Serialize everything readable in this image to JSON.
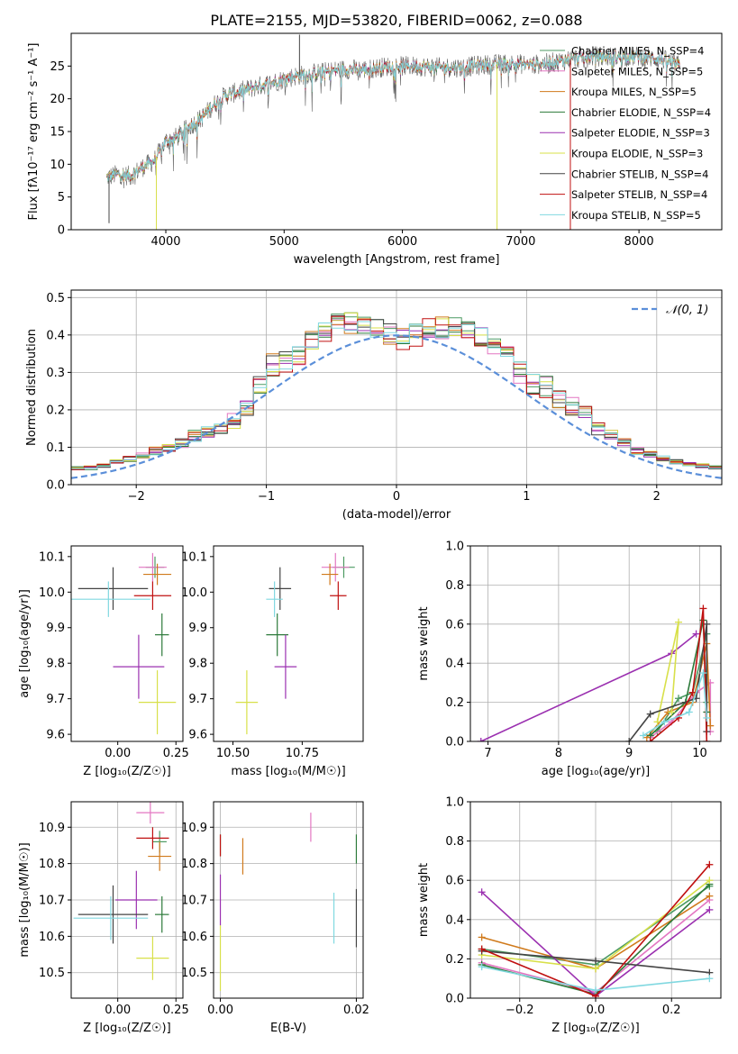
{
  "figure": {
    "title": "PLATE=2155, MJD=53820, FIBERID=0062, z=0.088"
  },
  "model_labels": [
    "Chabrier MILES, N_SSP=4",
    "Salpeter MILES, N_SSP=5",
    "Kroupa MILES, N_SSP=5",
    "Chabrier ELODIE, N_SSP=4",
    "Salpeter ELODIE, N_SSP=3",
    "Kroupa ELODIE, N_SSP=3",
    "Chabrier STELIB, N_SSP=4",
    "Salpeter STELIB, N_SSP=4",
    "Kroupa STELIB, N_SSP=5"
  ],
  "model_colors": [
    "#4c9a62",
    "#e377c2",
    "#d07a1c",
    "#2c7a3a",
    "#9b30b0",
    "#d8e04a",
    "#444444",
    "#c01010",
    "#80d8e0"
  ],
  "chart_data": [
    {
      "id": "spectrum",
      "type": "line",
      "xlabel": "wavelength [Angstrom, rest frame]",
      "ylabel": "Flux [fλ10⁻¹⁷ erg cm⁻² s⁻¹ A⁻¹]",
      "xlim": [
        3200,
        8700
      ],
      "ylim": [
        0,
        30
      ],
      "xticks": [
        4000,
        5000,
        6000,
        7000,
        8000
      ],
      "yticks": [
        0,
        5,
        10,
        15,
        20,
        25
      ],
      "legend_position": "upper-right",
      "grid": false,
      "continuum": {
        "x": [
          3500,
          3600,
          3700,
          3800,
          3900,
          4000,
          4100,
          4200,
          4300,
          4400,
          4500,
          4700,
          4900,
          5100,
          5300,
          5500,
          5700,
          5900,
          6100,
          6300,
          6500,
          6700,
          6900,
          7100,
          7300,
          7400,
          7600,
          7800,
          8000,
          8200,
          8350
        ],
        "y": [
          8,
          8.5,
          8.2,
          9.5,
          10.5,
          13.5,
          14.2,
          15.8,
          17,
          19,
          20.5,
          21.5,
          22.5,
          23.5,
          24,
          24.5,
          24.5,
          25,
          25,
          24.8,
          24.8,
          25.2,
          25.4,
          25.2,
          25.6,
          26,
          26.5,
          26.4,
          26.5,
          26,
          25
        ]
      },
      "spikes": [
        {
          "x": 3520,
          "y": 1
        },
        {
          "x": 3920,
          "y": 0
        },
        {
          "x": 5130,
          "y": 29.8
        },
        {
          "x": 6800,
          "y": 0
        },
        {
          "x": 7420,
          "y": 0
        }
      ]
    },
    {
      "id": "residual-histogram",
      "type": "histogram",
      "xlabel": "(data-model)/error",
      "ylabel": "Normed distribution",
      "xlim": [
        -2.5,
        2.5
      ],
      "ylim": [
        0,
        0.52
      ],
      "xticks": [
        -2,
        -1,
        0,
        1,
        2
      ],
      "yticks": [
        0,
        0.1,
        0.2,
        0.3,
        0.4,
        0.5
      ],
      "grid": true,
      "reference_curve": {
        "label": "𝒩(0, 1)",
        "mean": 0,
        "sigma": 1,
        "style": "dashed",
        "color": "#5b8fd9"
      },
      "bin_width": 0.1,
      "envelope": [
        0.02,
        0.025,
        0.03,
        0.035,
        0.04,
        0.045,
        0.045,
        0.05,
        0.06,
        0.07,
        0.08,
        0.09,
        0.1,
        0.11,
        0.13,
        0.14,
        0.15,
        0.17,
        0.2,
        0.27,
        0.32,
        0.33,
        0.35,
        0.38,
        0.41,
        0.43,
        0.43,
        0.43,
        0.42,
        0.4,
        0.39,
        0.4,
        0.42,
        0.42,
        0.42,
        0.41,
        0.4,
        0.36,
        0.34,
        0.3,
        0.27,
        0.26,
        0.23,
        0.21,
        0.19,
        0.15,
        0.13,
        0.11,
        0.09,
        0.08,
        0.07,
        0.06,
        0.055,
        0.05,
        0.045,
        0.04,
        0.035,
        0.03,
        0.025,
        0.02
      ]
    },
    {
      "id": "age-vs-z",
      "type": "scatter",
      "xlabel": "Z [log₁₀(Z/Z☉)]",
      "ylabel": "age  [log₁₀(age/yr)]",
      "xlim": [
        -0.2,
        0.28
      ],
      "ylim": [
        9.58,
        10.13
      ],
      "xticks": [
        0,
        0.25
      ],
      "yticks": [
        9.6,
        9.7,
        9.8,
        9.9,
        10.0,
        10.1
      ],
      "points": [
        {
          "x": 0.16,
          "y": 10.07,
          "ex": 0.04,
          "ey": 0.03
        },
        {
          "x": 0.15,
          "y": 10.07,
          "ex": 0.06,
          "ey": 0.04
        },
        {
          "x": 0.17,
          "y": 10.05,
          "ex": 0.06,
          "ey": 0.03
        },
        {
          "x": 0.19,
          "y": 9.88,
          "ex": 0.03,
          "ey": 0.06
        },
        {
          "x": 0.09,
          "y": 9.79,
          "ex": 0.11,
          "ey": 0.09
        },
        {
          "x": 0.17,
          "y": 9.69,
          "ex": 0.08,
          "ey": 0.09
        },
        {
          "x": -0.02,
          "y": 10.01,
          "ex": 0.15,
          "ey": 0.06
        },
        {
          "x": 0.15,
          "y": 9.99,
          "ex": 0.08,
          "ey": 0.04
        },
        {
          "x": -0.04,
          "y": 9.98,
          "ex": 0.18,
          "ey": 0.05
        }
      ]
    },
    {
      "id": "age-vs-mass",
      "type": "scatter",
      "xlabel": "mass [log₁₀(M/M☉)]",
      "ylabel": "",
      "xlim": [
        10.43,
        10.97
      ],
      "ylim": [
        9.58,
        10.13
      ],
      "xticks": [
        10.5,
        10.75
      ],
      "yticks": [
        9.6,
        9.7,
        9.8,
        9.9,
        10.0,
        10.1
      ],
      "points": [
        {
          "x": 10.9,
          "y": 10.07,
          "ex": 0.04,
          "ey": 0.03
        },
        {
          "x": 10.87,
          "y": 10.07,
          "ex": 0.05,
          "ey": 0.04
        },
        {
          "x": 10.85,
          "y": 10.05,
          "ex": 0.03,
          "ey": 0.03
        },
        {
          "x": 10.66,
          "y": 9.88,
          "ex": 0.04,
          "ey": 0.06
        },
        {
          "x": 10.69,
          "y": 9.79,
          "ex": 0.04,
          "ey": 0.09
        },
        {
          "x": 10.55,
          "y": 9.69,
          "ex": 0.04,
          "ey": 0.09
        },
        {
          "x": 10.67,
          "y": 10.01,
          "ex": 0.04,
          "ey": 0.06
        },
        {
          "x": 10.88,
          "y": 9.99,
          "ex": 0.03,
          "ey": 0.04
        },
        {
          "x": 10.65,
          "y": 9.98,
          "ex": 0.03,
          "ey": 0.05
        }
      ]
    },
    {
      "id": "mass-weight-vs-age",
      "type": "line",
      "xlabel": "age  [log₁₀(age/yr)]",
      "ylabel": "mass weight",
      "xlim": [
        6.75,
        10.3
      ],
      "ylim": [
        0,
        1
      ],
      "xticks": [
        7,
        8,
        9,
        10
      ],
      "yticks": [
        0,
        0.2,
        0.4,
        0.6,
        0.8,
        1.0
      ],
      "grid": true,
      "series": [
        {
          "points": [
            [
              9.4,
              0.05
            ],
            [
              9.7,
              0.22
            ],
            [
              9.9,
              0.25
            ],
            [
              10.1,
              0.55
            ],
            [
              10.1,
              0.2
            ]
          ]
        },
        {
          "points": [
            [
              9.3,
              0.02
            ],
            [
              9.6,
              0.1
            ],
            [
              9.95,
              0.25
            ],
            [
              10.15,
              0.3
            ],
            [
              10.15,
              0.05
            ]
          ]
        },
        {
          "points": [
            [
              9.25,
              0.02
            ],
            [
              9.55,
              0.15
            ],
            [
              9.9,
              0.2
            ],
            [
              10.1,
              0.5
            ],
            [
              10.15,
              0.08
            ]
          ]
        },
        {
          "points": [
            [
              9.3,
              0.03
            ],
            [
              9.8,
              0.2
            ],
            [
              10.05,
              0.62
            ],
            [
              10.1,
              0.15
            ]
          ]
        },
        {
          "points": [
            [
              6.9,
              0.0
            ],
            [
              9.6,
              0.45
            ],
            [
              9.95,
              0.55
            ]
          ]
        },
        {
          "points": [
            [
              9.4,
              0.1
            ],
            [
              9.7,
              0.61
            ],
            [
              9.6,
              0.15
            ]
          ]
        },
        {
          "points": [
            [
              9.0,
              0.0
            ],
            [
              9.3,
              0.14
            ],
            [
              9.95,
              0.22
            ],
            [
              10.1,
              0.6
            ],
            [
              10.1,
              0.05
            ]
          ]
        },
        {
          "points": [
            [
              9.3,
              0.0
            ],
            [
              9.7,
              0.12
            ],
            [
              9.9,
              0.25
            ],
            [
              10.05,
              0.68
            ],
            [
              10.1,
              0.0
            ]
          ]
        },
        {
          "points": [
            [
              9.2,
              0.03
            ],
            [
              9.5,
              0.1
            ],
            [
              9.85,
              0.15
            ],
            [
              10.05,
              0.35
            ],
            [
              10.1,
              0.12
            ]
          ]
        }
      ]
    },
    {
      "id": "mass-vs-z",
      "type": "scatter",
      "xlabel": "Z [log₁₀(Z/Z☉)]",
      "ylabel": "mass [log₁₀(M/M☉)]",
      "xlim": [
        -0.2,
        0.28
      ],
      "ylim": [
        10.43,
        10.97
      ],
      "xticks": [
        0,
        0.25
      ],
      "yticks": [
        10.5,
        10.6,
        10.7,
        10.8,
        10.9
      ],
      "grid": true,
      "points": [
        {
          "x": 0.18,
          "y": 10.86,
          "ex": 0.03,
          "ey": 0.03
        },
        {
          "x": 0.14,
          "y": 10.94,
          "ex": 0.06,
          "ey": 0.03
        },
        {
          "x": 0.18,
          "y": 10.82,
          "ex": 0.05,
          "ey": 0.04
        },
        {
          "x": 0.19,
          "y": 10.66,
          "ex": 0.03,
          "ey": 0.05
        },
        {
          "x": 0.08,
          "y": 10.7,
          "ex": 0.09,
          "ey": 0.08
        },
        {
          "x": 0.15,
          "y": 10.54,
          "ex": 0.07,
          "ey": 0.06
        },
        {
          "x": -0.02,
          "y": 10.66,
          "ex": 0.15,
          "ey": 0.08
        },
        {
          "x": 0.15,
          "y": 10.87,
          "ex": 0.07,
          "ey": 0.03
        },
        {
          "x": -0.03,
          "y": 10.65,
          "ex": 0.16,
          "ey": 0.06
        }
      ]
    },
    {
      "id": "mass-vs-ebv",
      "type": "scatter",
      "xlabel": "E(B-V)",
      "ylabel": "",
      "xlim": [
        -0.001,
        0.021
      ],
      "ylim": [
        10.43,
        10.97
      ],
      "xticks": [
        0,
        0.02
      ],
      "yticks": [
        10.5,
        10.6,
        10.7,
        10.8,
        10.9
      ],
      "grid": true,
      "points": [
        {
          "x": 0.0,
          "y": 10.85,
          "ex": 0,
          "ey": 0.03
        },
        {
          "x": 0.0133,
          "y": 10.9,
          "ex": 0,
          "ey": 0.04
        },
        {
          "x": 0.0033,
          "y": 10.82,
          "ex": 0,
          "ey": 0.05
        },
        {
          "x": 0.02,
          "y": 10.84,
          "ex": 0,
          "ey": 0.04
        },
        {
          "x": 0.0,
          "y": 10.7,
          "ex": 0,
          "ey": 0.07
        },
        {
          "x": 0.0,
          "y": 10.54,
          "ex": 0,
          "ey": 0.09
        },
        {
          "x": 0.02,
          "y": 10.65,
          "ex": 0,
          "ey": 0.08
        },
        {
          "x": 0.0,
          "y": 10.85,
          "ex": 0,
          "ey": 0.03
        },
        {
          "x": 0.0167,
          "y": 10.65,
          "ex": 0,
          "ey": 0.07
        }
      ]
    },
    {
      "id": "mass-weight-vs-z",
      "type": "line",
      "xlabel": "Z [log₁₀(Z/Z☉)]",
      "ylabel": "mass weight",
      "xlim": [
        -0.33,
        0.33
      ],
      "ylim": [
        0,
        1
      ],
      "xticks": [
        -0.2,
        0,
        0.2
      ],
      "yticks": [
        0,
        0.2,
        0.4,
        0.6,
        0.8,
        1.0
      ],
      "grid": true,
      "series": [
        {
          "points": [
            [
              -0.3,
              0.25
            ],
            [
              0,
              0.17
            ],
            [
              0.3,
              0.57
            ]
          ]
        },
        {
          "points": [
            [
              -0.3,
              0.18
            ],
            [
              0,
              0.03
            ],
            [
              0.3,
              0.5
            ]
          ]
        },
        {
          "points": [
            [
              -0.3,
              0.31
            ],
            [
              0,
              0.15
            ],
            [
              0.3,
              0.52
            ]
          ]
        },
        {
          "points": [
            [
              -0.3,
              0.17
            ],
            [
              0,
              0.02
            ],
            [
              0.3,
              0.58
            ]
          ]
        },
        {
          "points": [
            [
              -0.3,
              0.54
            ],
            [
              0,
              0.01
            ],
            [
              0.3,
              0.45
            ]
          ]
        },
        {
          "points": [
            [
              -0.3,
              0.22
            ],
            [
              0,
              0.15
            ],
            [
              0.3,
              0.6
            ]
          ]
        },
        {
          "points": [
            [
              -0.3,
              0.24
            ],
            [
              0,
              0.19
            ],
            [
              0.3,
              0.13
            ]
          ]
        },
        {
          "points": [
            [
              -0.3,
              0.25
            ],
            [
              0,
              0.01
            ],
            [
              0.3,
              0.68
            ]
          ]
        },
        {
          "points": [
            [
              -0.3,
              0.16
            ],
            [
              0,
              0.04
            ],
            [
              0.3,
              0.1
            ]
          ]
        }
      ]
    }
  ]
}
